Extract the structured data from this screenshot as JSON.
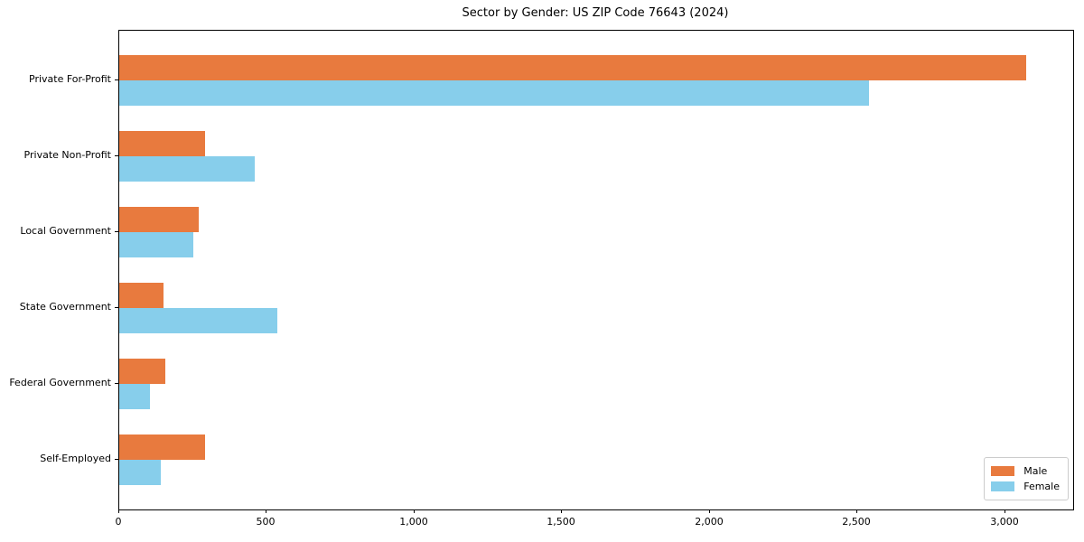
{
  "chart_data": {
    "type": "bar",
    "orientation": "horizontal",
    "title": "Sector by Gender: US ZIP Code 76643 (2024)",
    "xlabel": "",
    "ylabel": "",
    "categories": [
      "Private For-Profit",
      "Private Non-Profit",
      "Local Government",
      "State Government",
      "Federal Government",
      "Self-Employed"
    ],
    "series": [
      {
        "name": "Male",
        "color": "#E87A3E",
        "values": [
          3070,
          290,
          270,
          150,
          155,
          290
        ]
      },
      {
        "name": "Female",
        "color": "#87CEEB",
        "values": [
          2540,
          460,
          250,
          535,
          105,
          140
        ]
      }
    ],
    "xlim": [
      0,
      3230
    ],
    "xticks": [
      0,
      500,
      1000,
      1500,
      2000,
      2500,
      3000
    ],
    "xtick_labels": [
      "0",
      "500",
      "1,000",
      "1,500",
      "2,000",
      "2,500",
      "3,000"
    ],
    "grid": false,
    "legend": {
      "position": "lower right",
      "entries": [
        "Male",
        "Female"
      ]
    }
  }
}
